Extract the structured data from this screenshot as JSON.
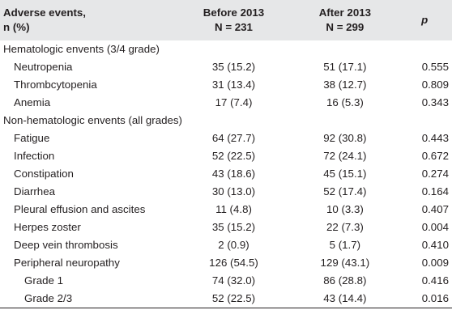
{
  "table": {
    "header": {
      "label": [
        "Adverse events,",
        "n (%)"
      ],
      "before": [
        "Before 2013",
        "N = 231"
      ],
      "after": [
        "After 2013",
        "N = 299"
      ],
      "p": "p"
    },
    "sections": [
      {
        "title": "Hematologic envents (3/4 grade)",
        "rows": [
          {
            "label": "Neutropenia",
            "before": "35 (15.2)",
            "after": "51 (17.1)",
            "p": "0.555"
          },
          {
            "label": "Thrombcytopenia",
            "before": "31 (13.4)",
            "after": "38 (12.7)",
            "p": "0.809"
          },
          {
            "label": "Anemia",
            "before": "17 (7.4)",
            "after": "16 (5.3)",
            "p": "0.343"
          }
        ]
      },
      {
        "title": "Non-hematologic envents (all grades)",
        "rows": [
          {
            "label": "Fatigue",
            "before": "64 (27.7)",
            "after": "92 (30.8)",
            "p": "0.443"
          },
          {
            "label": "Infection",
            "before": "52 (22.5)",
            "after": "72 (24.1)",
            "p": "0.672"
          },
          {
            "label": "Constipation",
            "before": "43 (18.6)",
            "after": "45 (15.1)",
            "p": "0.274"
          },
          {
            "label": "Diarrhea",
            "before": "30 (13.0)",
            "after": "52 (17.4)",
            "p": "0.164"
          },
          {
            "label": "Pleural effusion and ascites",
            "before": "11 (4.8)",
            "after": "10 (3.3)",
            "p": "0.407"
          },
          {
            "label": "Herpes zoster",
            "before": "35 (15.2)",
            "after": "22 (7.3)",
            "p": "0.004"
          },
          {
            "label": "Deep vein thrombosis",
            "before": "2 (0.9)",
            "after": "5 (1.7)",
            "p": "0.410"
          },
          {
            "label": "Peripheral neuropathy",
            "before": "126 (54.5)",
            "after": "129 (43.1)",
            "p": "0.009",
            "subrows": [
              {
                "label": "Grade 1",
                "before": "74 (32.0)",
                "after": "86 (28.8)",
                "p": "0.416"
              },
              {
                "label": "Grade 2/3",
                "before": "52 (22.5)",
                "after": "43 (14.4)",
                "p": "0.016"
              }
            ]
          }
        ]
      }
    ]
  }
}
